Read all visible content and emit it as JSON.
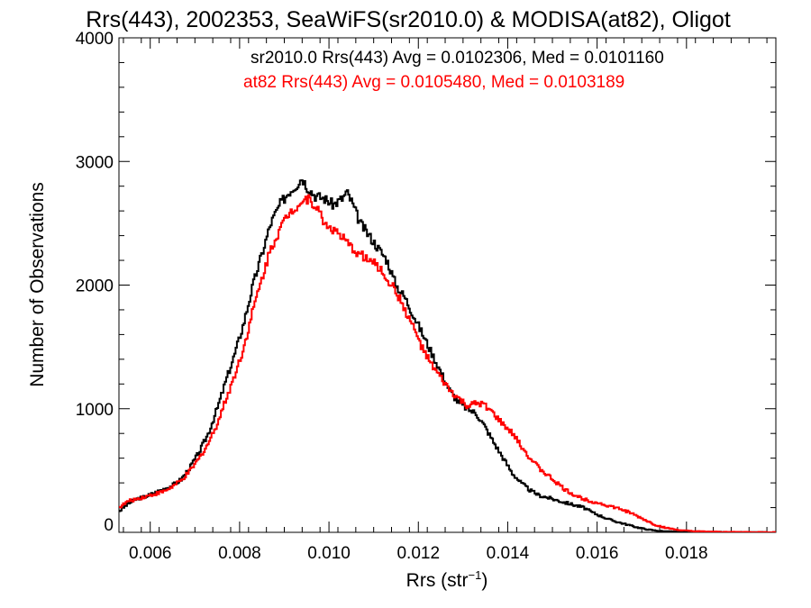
{
  "chart_data": {
    "type": "line",
    "title": "Rrs(443), 2002353, SeaWiFS(sr2010.0) & MODISA(at82), Oligot",
    "xlabel": "Rrs (str",
    "xlabel_sup": "−1",
    "xlabel_close": ")",
    "ylabel": "Number of Observations",
    "xlim": [
      0.0053,
      0.02
    ],
    "ylim": [
      0,
      4000
    ],
    "xticks": [
      0.006,
      0.008,
      0.01,
      0.012,
      0.014,
      0.016,
      0.018
    ],
    "xtick_labels": [
      "0.006",
      "0.008",
      "0.010",
      "0.012",
      "0.014",
      "0.016",
      "0.018"
    ],
    "yticks": [
      0,
      1000,
      2000,
      3000,
      4000
    ],
    "ytick_labels": [
      "0",
      "1000",
      "2000",
      "3000",
      "4000"
    ],
    "grid": false,
    "legend_position": "top-right",
    "series": [
      {
        "label": "sr2010.0 Rrs(443) Avg = 0.0102306, Med = 0.0101160",
        "color": "#000000",
        "points": [
          [
            0.0053,
            170
          ],
          [
            0.0055,
            230
          ],
          [
            0.0057,
            270
          ],
          [
            0.0059,
            290
          ],
          [
            0.0061,
            320
          ],
          [
            0.0063,
            350
          ],
          [
            0.0065,
            380
          ],
          [
            0.0067,
            430
          ],
          [
            0.0069,
            530
          ],
          [
            0.0071,
            650
          ],
          [
            0.0073,
            800
          ],
          [
            0.0075,
            1000
          ],
          [
            0.0077,
            1230
          ],
          [
            0.0079,
            1450
          ],
          [
            0.0081,
            1700
          ],
          [
            0.0083,
            2000
          ],
          [
            0.0085,
            2250
          ],
          [
            0.0087,
            2500
          ],
          [
            0.0089,
            2650
          ],
          [
            0.0091,
            2750
          ],
          [
            0.0093,
            2820
          ],
          [
            0.0094,
            2870
          ],
          [
            0.0095,
            2800
          ],
          [
            0.0097,
            2720
          ],
          [
            0.0099,
            2700
          ],
          [
            0.0101,
            2650
          ],
          [
            0.0103,
            2700
          ],
          [
            0.0104,
            2750
          ],
          [
            0.0105,
            2680
          ],
          [
            0.0107,
            2500
          ],
          [
            0.0109,
            2400
          ],
          [
            0.0111,
            2300
          ],
          [
            0.0113,
            2200
          ],
          [
            0.0115,
            2000
          ],
          [
            0.0117,
            1900
          ],
          [
            0.0119,
            1750
          ],
          [
            0.0121,
            1600
          ],
          [
            0.0123,
            1450
          ],
          [
            0.0125,
            1300
          ],
          [
            0.0127,
            1150
          ],
          [
            0.0129,
            1050
          ],
          [
            0.0131,
            1000
          ],
          [
            0.0133,
            960
          ],
          [
            0.0135,
            850
          ],
          [
            0.0137,
            720
          ],
          [
            0.0139,
            600
          ],
          [
            0.0141,
            480
          ],
          [
            0.0143,
            400
          ],
          [
            0.0145,
            340
          ],
          [
            0.0147,
            300
          ],
          [
            0.0149,
            280
          ],
          [
            0.0151,
            260
          ],
          [
            0.0153,
            240
          ],
          [
            0.0155,
            220
          ],
          [
            0.0157,
            200
          ],
          [
            0.0159,
            160
          ],
          [
            0.0161,
            130
          ],
          [
            0.0163,
            100
          ],
          [
            0.0165,
            80
          ],
          [
            0.0167,
            60
          ],
          [
            0.0169,
            40
          ],
          [
            0.0171,
            25
          ],
          [
            0.0173,
            15
          ],
          [
            0.0175,
            8
          ],
          [
            0.0178,
            4
          ],
          [
            0.0185,
            2
          ],
          [
            0.02,
            0
          ]
        ]
      },
      {
        "label": "at82 Rrs(443) Avg = 0.0105480, Med = 0.0103189",
        "color": "#ff0000",
        "points": [
          [
            0.0053,
            200
          ],
          [
            0.0055,
            250
          ],
          [
            0.0057,
            270
          ],
          [
            0.0059,
            290
          ],
          [
            0.0061,
            310
          ],
          [
            0.0063,
            330
          ],
          [
            0.0065,
            370
          ],
          [
            0.0067,
            420
          ],
          [
            0.0069,
            500
          ],
          [
            0.0071,
            600
          ],
          [
            0.0073,
            720
          ],
          [
            0.0075,
            880
          ],
          [
            0.0077,
            1080
          ],
          [
            0.0079,
            1280
          ],
          [
            0.0081,
            1500
          ],
          [
            0.0083,
            1800
          ],
          [
            0.0085,
            2050
          ],
          [
            0.0087,
            2300
          ],
          [
            0.0089,
            2450
          ],
          [
            0.0091,
            2580
          ],
          [
            0.0093,
            2650
          ],
          [
            0.0095,
            2700
          ],
          [
            0.0097,
            2650
          ],
          [
            0.0099,
            2500
          ],
          [
            0.0101,
            2450
          ],
          [
            0.0103,
            2380
          ],
          [
            0.0105,
            2300
          ],
          [
            0.0107,
            2250
          ],
          [
            0.0109,
            2200
          ],
          [
            0.0111,
            2150
          ],
          [
            0.0113,
            2050
          ],
          [
            0.0115,
            1950
          ],
          [
            0.0117,
            1800
          ],
          [
            0.0119,
            1650
          ],
          [
            0.0121,
            1480
          ],
          [
            0.0123,
            1350
          ],
          [
            0.0125,
            1250
          ],
          [
            0.0127,
            1150
          ],
          [
            0.0129,
            1080
          ],
          [
            0.0131,
            1020
          ],
          [
            0.0133,
            1040
          ],
          [
            0.0135,
            1030
          ],
          [
            0.0137,
            950
          ],
          [
            0.0139,
            870
          ],
          [
            0.0141,
            800
          ],
          [
            0.0143,
            700
          ],
          [
            0.0145,
            600
          ],
          [
            0.0147,
            520
          ],
          [
            0.0149,
            460
          ],
          [
            0.0151,
            400
          ],
          [
            0.0153,
            340
          ],
          [
            0.0155,
            300
          ],
          [
            0.0157,
            270
          ],
          [
            0.0159,
            250
          ],
          [
            0.0161,
            230
          ],
          [
            0.0163,
            210
          ],
          [
            0.0165,
            190
          ],
          [
            0.0167,
            165
          ],
          [
            0.0169,
            130
          ],
          [
            0.0171,
            95
          ],
          [
            0.0173,
            60
          ],
          [
            0.0175,
            40
          ],
          [
            0.0177,
            25
          ],
          [
            0.0179,
            15
          ],
          [
            0.0182,
            8
          ],
          [
            0.0186,
            4
          ],
          [
            0.019,
            2
          ],
          [
            0.02,
            0
          ]
        ]
      }
    ]
  }
}
